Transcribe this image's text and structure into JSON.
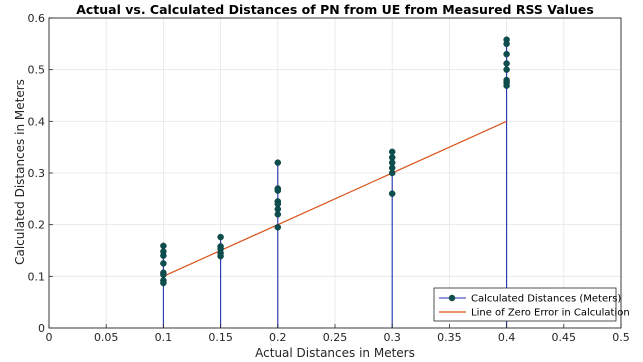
{
  "chart_data": {
    "type": "scatter",
    "title": "Actual vs. Calculated Distances of PN from UE from Measured RSS Values",
    "xlabel": "Actual Distances in Meters",
    "ylabel": "Calculated Distances in Meters",
    "xlim": [
      0,
      0.5
    ],
    "ylim": [
      0,
      0.6
    ],
    "xticks": [
      0,
      0.05,
      0.1,
      0.15,
      0.2,
      0.25,
      0.3,
      0.35,
      0.4,
      0.45,
      0.5
    ],
    "xtick_labels": [
      "0",
      "0.05",
      "0.1",
      "0.15",
      "0.2",
      "0.25",
      "0.3",
      "0.35",
      "0.4",
      "0.45",
      "0.5"
    ],
    "yticks": [
      0,
      0.1,
      0.2,
      0.3,
      0.4,
      0.5,
      0.6
    ],
    "ytick_labels": [
      "0",
      "0.1",
      "0.2",
      "0.3",
      "0.4",
      "0.5",
      "0.6"
    ],
    "grid": true,
    "legend_position": "bottom-right",
    "series": [
      {
        "name": "Calculated Distances (Meters)",
        "kind": "stem",
        "color": "#0d4f4e",
        "stem_color": "#1f2fb5",
        "points": [
          [
            0.1,
            0.159
          ],
          [
            0.1,
            0.148
          ],
          [
            0.1,
            0.14
          ],
          [
            0.1,
            0.125
          ],
          [
            0.1,
            0.107
          ],
          [
            0.1,
            0.103
          ],
          [
            0.1,
            0.092
          ],
          [
            0.1,
            0.087
          ],
          [
            0.15,
            0.176
          ],
          [
            0.15,
            0.158
          ],
          [
            0.15,
            0.153
          ],
          [
            0.15,
            0.145
          ],
          [
            0.15,
            0.139
          ],
          [
            0.2,
            0.32
          ],
          [
            0.2,
            0.27
          ],
          [
            0.2,
            0.266
          ],
          [
            0.2,
            0.245
          ],
          [
            0.2,
            0.24
          ],
          [
            0.2,
            0.23
          ],
          [
            0.2,
            0.22
          ],
          [
            0.2,
            0.195
          ],
          [
            0.3,
            0.341
          ],
          [
            0.3,
            0.33
          ],
          [
            0.3,
            0.32
          ],
          [
            0.3,
            0.31
          ],
          [
            0.3,
            0.3
          ],
          [
            0.3,
            0.26
          ],
          [
            0.4,
            0.558
          ],
          [
            0.4,
            0.55
          ],
          [
            0.4,
            0.53
          ],
          [
            0.4,
            0.512
          ],
          [
            0.4,
            0.5
          ],
          [
            0.4,
            0.48
          ],
          [
            0.4,
            0.475
          ],
          [
            0.4,
            0.469
          ]
        ]
      },
      {
        "name": "Line of Zero Error in Calculation",
        "kind": "line",
        "color": "#d95319",
        "x": [
          0.1,
          0.4
        ],
        "y": [
          0.1,
          0.4
        ]
      }
    ]
  }
}
